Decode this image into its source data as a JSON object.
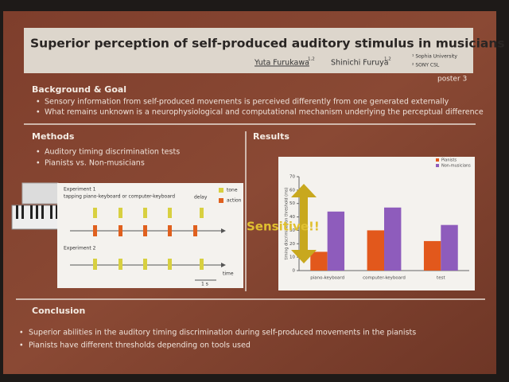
{
  "header": {
    "title": "Superior perception of self-produced auditory stimulus in musicians",
    "authors": [
      {
        "name": "Yuta Furukawa",
        "sup": "1,2"
      },
      {
        "name": "Shinichi Furuya",
        "sup": "1,2"
      }
    ],
    "affiliations": [
      "¹ Sophia University",
      "² SONY CSL"
    ],
    "poster": "poster 3"
  },
  "background": {
    "heading": "Background & Goal",
    "bullets": [
      "Sensory information from self-produced movements is perceived differently from one generated externally",
      "What remains unknown is a neurophysiological and computational mechanism underlying the perceptual difference"
    ]
  },
  "methods": {
    "heading": "Methods",
    "bullets": [
      "Auditory timing discrimination tests",
      "Pianists vs. Non-musicians"
    ],
    "diagram": {
      "experiment1": "Experiment 1",
      "task": "tapping piano-keyboard or computer-keyboard",
      "experiment2": "Experiment 2",
      "tone": "tone",
      "action": "action",
      "delay": "delay",
      "time": "time",
      "scale": "1 s"
    }
  },
  "results": {
    "heading": "Results",
    "annotation": "Sensitive!!",
    "chart_data": {
      "type": "bar",
      "y_label": "timing discrimination threshold (ms)",
      "categories": [
        "piano-keyboard",
        "computer-keyboard",
        "test"
      ],
      "series": [
        {
          "name": "Pianists",
          "color": "#e2581c",
          "values": [
            14,
            30,
            22
          ]
        },
        {
          "name": "Non-musicians",
          "color": "#8e5cbc",
          "values": [
            44,
            47,
            34
          ]
        }
      ],
      "ylim": [
        0,
        70
      ],
      "yticks": [
        0,
        10,
        20,
        30,
        40,
        50,
        60,
        70
      ],
      "grid": false,
      "legend": "top-right"
    }
  },
  "conclusion": {
    "heading": "Conclusion",
    "bullets": [
      "Superior abilities in the auditory timing discrimination during self-produced movements in the pianists",
      "Pianists have different thresholds depending on tools used"
    ]
  }
}
